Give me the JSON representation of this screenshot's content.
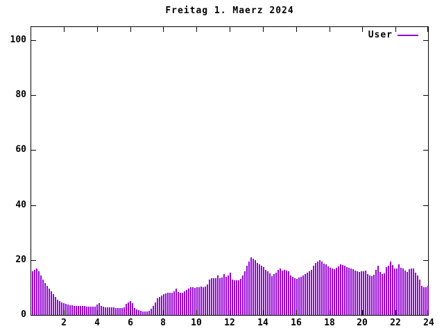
{
  "title": "Freitag 1. Maerz 2024",
  "legend": {
    "label": "User"
  },
  "colors": {
    "bar": "#9400d3",
    "axis": "#000000",
    "background": "#ffffff"
  },
  "chart_data": {
    "type": "bar",
    "title": "Freitag 1. Maerz 2024",
    "series_name": "User",
    "x_unit": "hour_of_day",
    "x_range": [
      0,
      24
    ],
    "x_ticks": [
      2,
      4,
      6,
      8,
      10,
      12,
      14,
      16,
      18,
      20,
      22,
      24
    ],
    "y_ticks": [
      0,
      20,
      40,
      60,
      80,
      100
    ],
    "ylim": [
      0,
      105
    ],
    "grid": false,
    "legend_position": "top-right-inside",
    "bar_interval_minutes": 7.5,
    "values": [
      16,
      16.5,
      17,
      16,
      14.5,
      13,
      11.5,
      10.5,
      9.5,
      8.5,
      7.5,
      6.5,
      5.5,
      5,
      4.5,
      4.2,
      4,
      3.8,
      3.6,
      3.5,
      3.4,
      3.3,
      3.3,
      3.2,
      3.2,
      3.2,
      3.1,
      3,
      3,
      3,
      3,
      3.8,
      4.2,
      3.4,
      3,
      2.9,
      2.9,
      2.8,
      2.8,
      2.8,
      2.6,
      2.5,
      2.5,
      2.6,
      2.8,
      4,
      4.6,
      5,
      4.2,
      2.6,
      2,
      1.8,
      1.5,
      1.3,
      1.2,
      1.3,
      1.5,
      2.2,
      3.2,
      4.5,
      6,
      6.5,
      7,
      7.5,
      7.8,
      8,
      8.2,
      8,
      8.5,
      9.5,
      8.3,
      8,
      8.2,
      8.5,
      9,
      9.6,
      10,
      10,
      9.8,
      10,
      10.2,
      10.3,
      10.2,
      10.4,
      11,
      13,
      13.5,
      13.3,
      13.5,
      14.5,
      13.4,
      13.6,
      15,
      14,
      14.5,
      15.5,
      12.8,
      12.5,
      12.5,
      12.7,
      13.2,
      14.5,
      16,
      18,
      19.5,
      21,
      20.5,
      20,
      19,
      18.5,
      18,
      17.5,
      16.5,
      16,
      15.2,
      14.2,
      15,
      15.5,
      16.5,
      17,
      16.2,
      16.4,
      16.2,
      15.8,
      14.5,
      13.8,
      13.5,
      13.2,
      13.6,
      14,
      14.5,
      15,
      15.5,
      16,
      16.5,
      18,
      19,
      19.5,
      20,
      19.5,
      18.8,
      18.5,
      17.8,
      17.2,
      17,
      16.6,
      17.2,
      17.6,
      18.5,
      18.2,
      18,
      17.5,
      17.2,
      17,
      16.6,
      16.2,
      15.8,
      15.6,
      15.8,
      16,
      16.2,
      14.8,
      14.4,
      14.2,
      14.6,
      16.4,
      18,
      15.6,
      15,
      15.2,
      17.5,
      18,
      19.5,
      18.2,
      16.8,
      17,
      18.5,
      17.2,
      17,
      16.2,
      15.6,
      16.6,
      17,
      16.8,
      15.5,
      14.5,
      13,
      10.5,
      10,
      10.2,
      10.5
    ]
  }
}
